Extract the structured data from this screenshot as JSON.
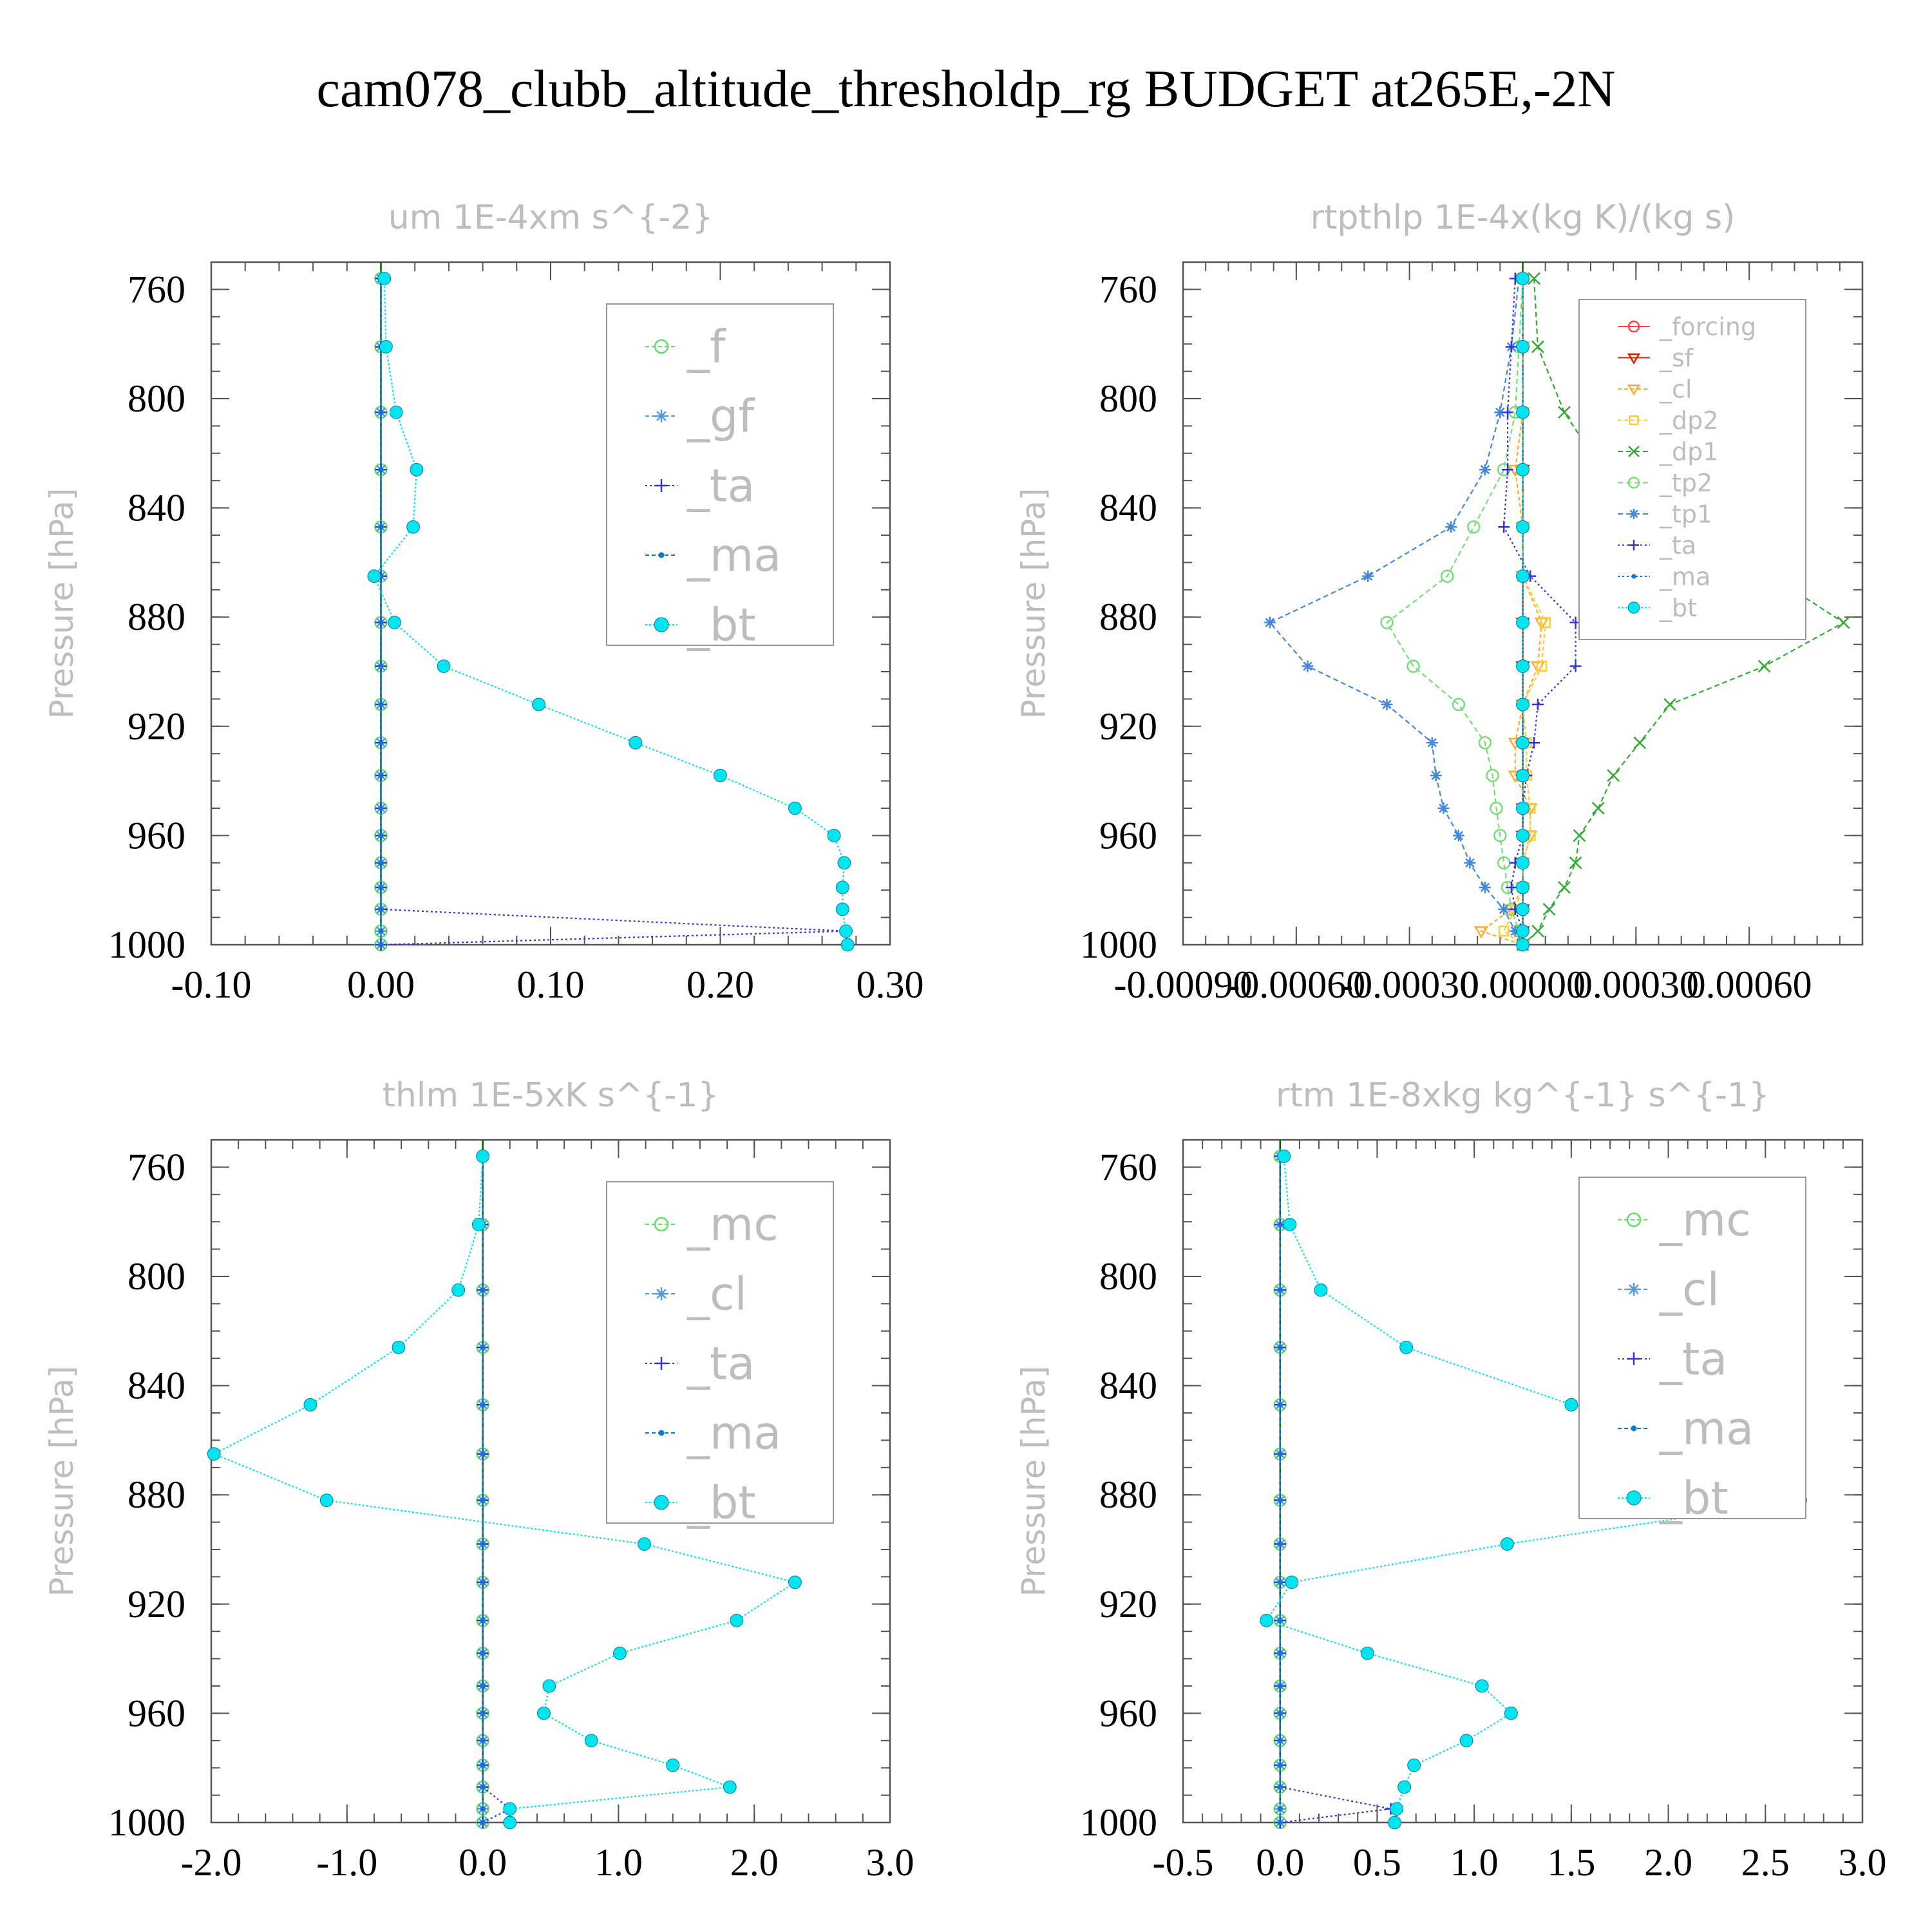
{
  "page": {
    "title": "cam078_clubb_altitude_thresholdp_rg  BUDGET at265E,-2N"
  },
  "style": {
    "text_gray": "#bdbdbd",
    "frame": "#555555",
    "zero_line": "#006400"
  },
  "chart_data": [
    {
      "type": "line",
      "title": "um  1E-4xm s^{-2}",
      "ylabel": "Pressure [hPa]",
      "xlim": [
        -0.1,
        0.3
      ],
      "ylim": [
        750,
        1000
      ],
      "y_reversed": true,
      "xticks": [
        -0.1,
        0.0,
        0.1,
        0.2,
        0.3
      ],
      "xtick_labels": [
        "-0.10",
        "0.00",
        "0.10",
        "0.20",
        "0.30"
      ],
      "yticks": [
        760,
        800,
        840,
        880,
        920,
        960,
        1000
      ],
      "ytick_labels": [
        "760",
        "800",
        "840",
        "880",
        "920",
        "960",
        "1000"
      ],
      "x_minor": 0.02,
      "y_minor": 10,
      "pressure": [
        756,
        781,
        805,
        826,
        847,
        865,
        882,
        898,
        912,
        926,
        938,
        950,
        960,
        970,
        979,
        987,
        995,
        1000
      ],
      "series": [
        {
          "name": "_f",
          "color": "#66dd66",
          "marker": "circle",
          "dash": "6,4",
          "values": [
            0,
            0,
            0,
            0,
            0,
            0,
            0,
            0,
            0,
            0,
            0,
            0,
            0,
            0,
            0,
            0,
            0,
            0
          ]
        },
        {
          "name": "_gf",
          "color": "#5599dd",
          "marker": "star",
          "dash": "6,4",
          "values": [
            0,
            0,
            0,
            0,
            0,
            0,
            0,
            0,
            0,
            0,
            0,
            0,
            0,
            0,
            0,
            0,
            0,
            0
          ]
        },
        {
          "name": "_ta",
          "color": "#3333dd",
          "marker": "plus",
          "dash": "3,4",
          "values": [
            0,
            0,
            0,
            0,
            0,
            0,
            0,
            0,
            0,
            0,
            0,
            0,
            0,
            0,
            0,
            0,
            0.274,
            0
          ]
        },
        {
          "name": "_ma",
          "color": "#1177cc",
          "marker": "dot",
          "dash": "6,4",
          "values": [
            0,
            0,
            0,
            0,
            0,
            0,
            0,
            0,
            0,
            0,
            0,
            0,
            0,
            0,
            0,
            0,
            0,
            0
          ]
        },
        {
          "name": "_bt",
          "color": "#00e5ee",
          "marker": "filled",
          "dash": "3,3",
          "values": [
            0.002,
            0.003,
            0.009,
            0.021,
            0.019,
            -0.004,
            0.008,
            0.037,
            0.093,
            0.15,
            0.2,
            0.244,
            0.267,
            0.273,
            0.272,
            0.272,
            0.274,
            0.275
          ]
        }
      ],
      "legend": "top-right"
    },
    {
      "type": "line",
      "title": "rtpthlp  1E-4x(kg K)/(kg s)",
      "ylabel": "Pressure [hPa]",
      "xlim": [
        -0.0009,
        0.0009
      ],
      "ylim": [
        750,
        1000
      ],
      "y_reversed": true,
      "xticks": [
        -0.0009,
        -0.0006,
        -0.0003,
        0.0,
        0.0003,
        0.0006
      ],
      "xtick_labels": [
        "-0.00090",
        "-0.00060",
        "-0.00030",
        "0.00000",
        "0.00030",
        "0.00060"
      ],
      "yticks": [
        760,
        800,
        840,
        880,
        920,
        960,
        1000
      ],
      "ytick_labels": [
        "760",
        "800",
        "840",
        "880",
        "920",
        "960",
        "1000"
      ],
      "x_minor": 6e-05,
      "y_minor": 10,
      "pressure": [
        756,
        781,
        805,
        826,
        847,
        865,
        882,
        898,
        912,
        926,
        938,
        950,
        960,
        970,
        979,
        987,
        995,
        1000
      ],
      "series": [
        {
          "name": "_forcing",
          "color": "#ff4444",
          "marker": "circle",
          "dash": "",
          "values": [
            0,
            0,
            0,
            0,
            0,
            0,
            0,
            0,
            0,
            0,
            0,
            0,
            0,
            0,
            0,
            0,
            0,
            0
          ]
        },
        {
          "name": "_sf",
          "color": "#dd2200",
          "marker": "triangle",
          "dash": "",
          "values": [
            0,
            0,
            0,
            0,
            0,
            0,
            0,
            0,
            0,
            0,
            0,
            0,
            0,
            0,
            0,
            0,
            0,
            0
          ]
        },
        {
          "name": "_cl",
          "color": "#ffaa33",
          "marker": "triangle",
          "dash": "6,4",
          "values": [
            0,
            0,
            0,
            -2e-05,
            0,
            0,
            5e-05,
            4e-05,
            0,
            -2e-05,
            -2e-05,
            2e-05,
            2e-05,
            0,
            0,
            -3e-05,
            -0.00011,
            0
          ]
        },
        {
          "name": "_dp2",
          "color": "#ffcc33",
          "marker": "square",
          "dash": "6,4",
          "values": [
            0,
            0,
            0,
            0,
            0,
            0,
            6e-05,
            5e-05,
            0,
            1e-05,
            1e-05,
            2e-05,
            2e-05,
            0,
            0,
            -2e-05,
            -5e-05,
            0
          ]
        },
        {
          "name": "_dp1",
          "color": "#33aa33",
          "marker": "cross",
          "dash": "8,5",
          "values": [
            3e-05,
            4e-05,
            0.00011,
            0.00021,
            0.00036,
            0.00066,
            0.00085,
            0.00064,
            0.00039,
            0.00031,
            0.00024,
            0.0002,
            0.00015,
            0.00014,
            0.00011,
            7e-05,
            4e-05,
            0
          ]
        },
        {
          "name": "_tp2",
          "color": "#77dd77",
          "marker": "circle",
          "dash": "8,5",
          "values": [
            0,
            -1e-05,
            -2e-05,
            -5e-05,
            -0.00013,
            -0.0002,
            -0.00036,
            -0.00029,
            -0.00017,
            -0.0001,
            -8e-05,
            -7e-05,
            -6e-05,
            -5e-05,
            -4e-05,
            -3e-05,
            -1e-05,
            0
          ]
        },
        {
          "name": "_tp1",
          "color": "#4488dd",
          "marker": "star",
          "dash": "8,5",
          "values": [
            -1e-05,
            -3e-05,
            -6e-05,
            -0.0001,
            -0.00019,
            -0.00041,
            -0.00067,
            -0.00057,
            -0.00036,
            -0.00024,
            -0.00023,
            -0.00021,
            -0.00017,
            -0.00014,
            -0.0001,
            -5e-05,
            -2e-05,
            0
          ]
        },
        {
          "name": "_ta",
          "color": "#3333dd",
          "marker": "plus",
          "dash": "3,4",
          "values": [
            -2e-05,
            -3e-05,
            -4e-05,
            -4e-05,
            -5e-05,
            2e-05,
            0.00014,
            0.00014,
            4e-05,
            3e-05,
            1e-05,
            0,
            0,
            -2e-05,
            -3e-05,
            -2e-05,
            0,
            0
          ]
        },
        {
          "name": "_ma",
          "color": "#1177cc",
          "marker": "dot",
          "dash": "3,4",
          "values": [
            0,
            0,
            0,
            0,
            0,
            0,
            0,
            0,
            0,
            0,
            0,
            0,
            0,
            0,
            0,
            0,
            0,
            0
          ]
        },
        {
          "name": "_bt",
          "color": "#00e5ee",
          "marker": "filled",
          "dash": "3,3",
          "values": [
            0,
            0,
            0,
            0,
            0,
            0,
            0,
            0,
            0,
            0,
            0,
            0,
            0,
            0,
            0,
            0,
            0,
            0
          ]
        }
      ],
      "legend": "top-right"
    },
    {
      "type": "line",
      "title": "thlm  1E-5xK s^{-1}",
      "ylabel": "Pressure [hPa]",
      "xlim": [
        -2.0,
        3.0
      ],
      "ylim": [
        750,
        1000
      ],
      "y_reversed": true,
      "xticks": [
        -2.0,
        -1.0,
        0.0,
        1.0,
        2.0,
        3.0
      ],
      "xtick_labels": [
        "-2.0",
        "-1.0",
        "0.0",
        "1.0",
        "2.0",
        "3.0"
      ],
      "yticks": [
        760,
        800,
        840,
        880,
        920,
        960,
        1000
      ],
      "ytick_labels": [
        "760",
        "800",
        "840",
        "880",
        "920",
        "960",
        "1000"
      ],
      "x_minor": 0.2,
      "y_minor": 10,
      "pressure": [
        756,
        781,
        805,
        826,
        847,
        865,
        882,
        898,
        912,
        926,
        938,
        950,
        960,
        970,
        979,
        987,
        995,
        1000
      ],
      "series": [
        {
          "name": "_mc",
          "color": "#66dd66",
          "marker": "circle",
          "dash": "6,4",
          "values": [
            0,
            0,
            0,
            0,
            0,
            0,
            0,
            0,
            0,
            0,
            0,
            0,
            0,
            0,
            0,
            0,
            0,
            0
          ]
        },
        {
          "name": "_cl",
          "color": "#5599dd",
          "marker": "star",
          "dash": "6,4",
          "values": [
            0,
            0,
            0,
            0,
            0,
            0,
            0,
            0,
            0,
            0,
            0,
            0,
            0,
            0,
            0,
            0,
            0,
            0
          ]
        },
        {
          "name": "_ta",
          "color": "#3333dd",
          "marker": "plus",
          "dash": "3,4",
          "values": [
            0,
            0,
            0,
            0,
            0,
            0,
            0,
            0,
            0,
            0,
            0,
            0,
            0,
            0,
            0,
            0,
            0.2,
            0
          ]
        },
        {
          "name": "_ma",
          "color": "#1177cc",
          "marker": "dot",
          "dash": "6,4",
          "values": [
            0,
            0,
            0,
            0,
            0,
            0,
            0,
            0,
            0,
            0,
            0,
            0,
            0,
            0,
            0,
            0,
            0,
            0
          ]
        },
        {
          "name": "_bt",
          "color": "#00e5ee",
          "marker": "filled",
          "dash": "3,3",
          "values": [
            0.0,
            -0.03,
            -0.18,
            -0.62,
            -1.27,
            -1.98,
            -1.15,
            1.19,
            2.3,
            1.87,
            1.01,
            0.49,
            0.45,
            0.8,
            1.4,
            1.82,
            0.2,
            0.2
          ]
        }
      ],
      "legend": "top-right"
    },
    {
      "type": "line",
      "title": "rtm  1E-8xkg kg^{-1} s^{-1}",
      "ylabel": "Pressure [hPa]",
      "xlim": [
        -0.5,
        3.0
      ],
      "ylim": [
        750,
        1000
      ],
      "y_reversed": true,
      "xticks": [
        -0.5,
        0.0,
        0.5,
        1.0,
        1.5,
        2.0,
        2.5,
        3.0
      ],
      "xtick_labels": [
        "-0.5",
        "0.0",
        "0.5",
        "1.0",
        "1.5",
        "2.0",
        "2.5",
        "3.0"
      ],
      "yticks": [
        760,
        800,
        840,
        880,
        920,
        960,
        1000
      ],
      "ytick_labels": [
        "760",
        "800",
        "840",
        "880",
        "920",
        "960",
        "1000"
      ],
      "x_minor": 0.1,
      "y_minor": 10,
      "pressure": [
        756,
        781,
        805,
        826,
        847,
        865,
        882,
        898,
        912,
        926,
        938,
        950,
        960,
        970,
        979,
        987,
        995,
        1000
      ],
      "series": [
        {
          "name": "_mc",
          "color": "#66dd66",
          "marker": "circle",
          "dash": "6,4",
          "values": [
            0,
            0,
            0,
            0,
            0,
            0,
            0,
            0,
            0,
            0,
            0,
            0,
            0,
            0,
            0,
            0,
            0,
            0
          ]
        },
        {
          "name": "_cl",
          "color": "#5599dd",
          "marker": "star",
          "dash": "6,4",
          "values": [
            0,
            0,
            0,
            0,
            0,
            0,
            0,
            0,
            0,
            0,
            0,
            0,
            0,
            0,
            0,
            0,
            0,
            0
          ]
        },
        {
          "name": "_ta",
          "color": "#3333dd",
          "marker": "plus",
          "dash": "3,4",
          "values": [
            0,
            0,
            0,
            0,
            0,
            0,
            0,
            0,
            0,
            0,
            0,
            0,
            0,
            0,
            0,
            0,
            0.57,
            0
          ]
        },
        {
          "name": "_ma",
          "color": "#1177cc",
          "marker": "dot",
          "dash": "6,4",
          "values": [
            0,
            0,
            0,
            0,
            0,
            0,
            0,
            0,
            0,
            0,
            0,
            0,
            0,
            0,
            0,
            0,
            0,
            0
          ]
        },
        {
          "name": "_bt",
          "color": "#00e5ee",
          "marker": "filled",
          "dash": "3,3",
          "values": [
            0.02,
            0.05,
            0.21,
            0.65,
            1.5,
            2.62,
            2.68,
            1.17,
            0.06,
            -0.07,
            0.45,
            1.04,
            1.19,
            0.96,
            0.69,
            0.64,
            0.6,
            0.59
          ]
        }
      ],
      "legend": "top-right"
    }
  ]
}
